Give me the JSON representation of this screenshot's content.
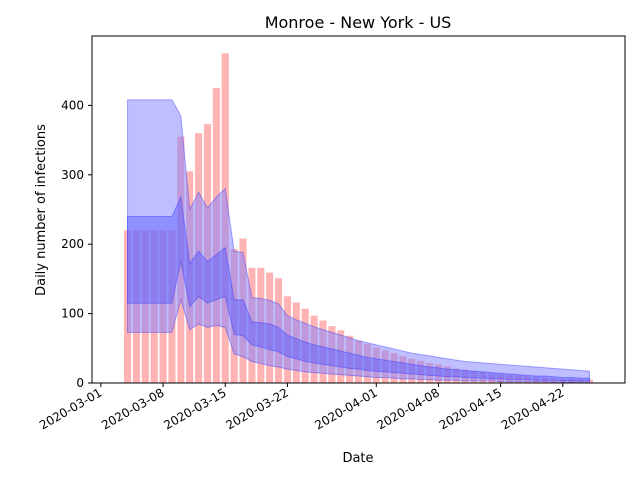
{
  "chart_data": {
    "type": "bar",
    "title": "Monroe - New York - US",
    "xlabel": "Date",
    "ylabel": "Daily number of infections",
    "x_start": "2020-03-04",
    "x_ticks": [
      "2020-03-01",
      "2020-03-08",
      "2020-03-15",
      "2020-03-22",
      "2020-04-01",
      "2020-04-08",
      "2020-04-15",
      "2020-04-22"
    ],
    "xlim": [
      "2020-02-29",
      "2020-04-29"
    ],
    "y_ticks": [
      0,
      100,
      200,
      300,
      400
    ],
    "ylim": [
      0,
      500
    ],
    "grid": false,
    "colors": {
      "bars": "#ff9999",
      "outer_band": "#8080ff",
      "middle_band": "#6060ff",
      "inner_band": "#9a3fb4"
    },
    "series": [
      {
        "values": [
          220,
          220,
          220,
          220,
          220,
          220,
          355,
          305,
          360,
          373,
          425,
          475,
          193,
          208,
          166,
          166,
          159,
          151,
          125,
          116,
          107,
          97,
          90,
          82,
          76,
          68,
          61,
          56,
          51,
          47,
          43,
          39,
          35,
          32,
          29,
          27,
          24,
          21,
          19,
          17,
          16,
          14,
          13,
          12,
          11,
          10,
          9,
          8,
          7,
          6,
          6,
          5,
          5
        ]
      }
    ],
    "bands": [
      {
        "upper": [
          408,
          408,
          408,
          408,
          408,
          408,
          385,
          250,
          275,
          252,
          268,
          280,
          190,
          188,
          123,
          122,
          119,
          114,
          97,
          91,
          86,
          81,
          77,
          73,
          69,
          65,
          61,
          58,
          55,
          52,
          49,
          46,
          43,
          41,
          39,
          37,
          35,
          33,
          31,
          30,
          29,
          28,
          27,
          26,
          25,
          24,
          23,
          22,
          21,
          20,
          19,
          18,
          17
        ],
        "lower": [
          73,
          73,
          73,
          73,
          73,
          73,
          120,
          77,
          85,
          80,
          83,
          80,
          42,
          38,
          31,
          28,
          25,
          23,
          20,
          18,
          16,
          15,
          14,
          13,
          12,
          11,
          10,
          9,
          8,
          8,
          7,
          6,
          6,
          5,
          5,
          4,
          4,
          4,
          3,
          3,
          3,
          3,
          2,
          2,
          2,
          2,
          2,
          2,
          1,
          1,
          1,
          1,
          1
        ]
      },
      {
        "upper": [
          240,
          240,
          240,
          240,
          240,
          240,
          268,
          172,
          190,
          175,
          185,
          195,
          120,
          120,
          88,
          87,
          85,
          80,
          69,
          64,
          59,
          55,
          52,
          49,
          46,
          43,
          40,
          37,
          35,
          33,
          31,
          29,
          27,
          25,
          23,
          22,
          20,
          19,
          18,
          17,
          16,
          15,
          14,
          13,
          12,
          11,
          10,
          10,
          9,
          8,
          8,
          7,
          7
        ],
        "lower": [
          115,
          115,
          115,
          115,
          115,
          115,
          175,
          110,
          125,
          115,
          120,
          125,
          70,
          68,
          55,
          52,
          48,
          45,
          38,
          35,
          31,
          29,
          27,
          25,
          23,
          21,
          20,
          18,
          17,
          16,
          15,
          14,
          13,
          12,
          11,
          10,
          9,
          9,
          8,
          7,
          7,
          6,
          6,
          5,
          5,
          5,
          4,
          4,
          4,
          3,
          3,
          3,
          3
        ]
      }
    ]
  }
}
